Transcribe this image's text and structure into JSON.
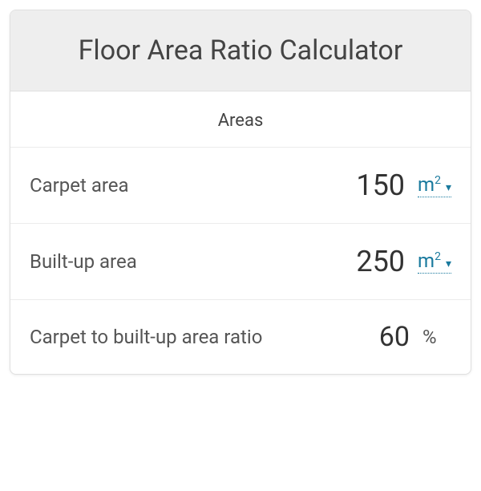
{
  "header": {
    "title": "Floor Area Ratio Calculator"
  },
  "section": {
    "title": "Areas"
  },
  "rows": [
    {
      "label": "Carpet area",
      "value": "150",
      "unit_html": "m²",
      "has_dropdown": true
    },
    {
      "label": "Built-up area",
      "value": "250",
      "unit_html": "m²",
      "has_dropdown": true
    },
    {
      "label": "Carpet to built-up area ratio",
      "value": "60",
      "unit_html": "%",
      "has_dropdown": false
    }
  ],
  "colors": {
    "header_bg": "#eeeeee",
    "border": "#e0e0e0",
    "text_primary": "#444444",
    "text_label": "#555555",
    "text_value": "#333333",
    "link": "#1a7a9e",
    "background": "#ffffff"
  }
}
